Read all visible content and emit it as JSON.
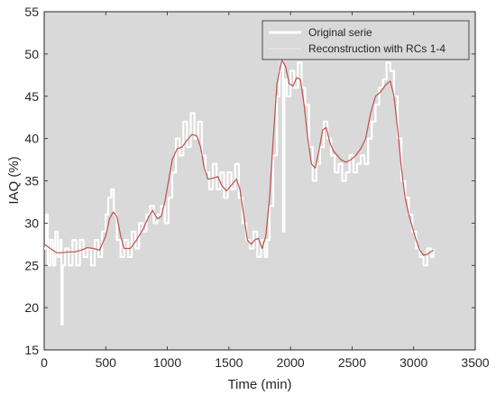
{
  "chart_data": {
    "type": "line",
    "xlabel": "Time (min)",
    "ylabel": "IAQ (%)",
    "xlim": [
      0,
      3500
    ],
    "ylim": [
      15,
      55
    ],
    "x_ticks": [
      0,
      500,
      1000,
      1500,
      2000,
      2500,
      3000,
      3500
    ],
    "y_ticks": [
      15,
      20,
      25,
      30,
      35,
      40,
      45,
      50,
      55
    ],
    "grid": false,
    "background": "#d9d9d9",
    "legend_position": "top-right",
    "series": [
      {
        "name": "Original serie",
        "color": "#ffffff",
        "style": "step",
        "points": [
          [
            0,
            27
          ],
          [
            15,
            31
          ],
          [
            30,
            25
          ],
          [
            50,
            28
          ],
          [
            70,
            25
          ],
          [
            90,
            29
          ],
          [
            110,
            26
          ],
          [
            130,
            28
          ],
          [
            140,
            18
          ],
          [
            150,
            25
          ],
          [
            170,
            27
          ],
          [
            200,
            25
          ],
          [
            230,
            28
          ],
          [
            260,
            25
          ],
          [
            290,
            28
          ],
          [
            320,
            26
          ],
          [
            350,
            27
          ],
          [
            380,
            25
          ],
          [
            410,
            28
          ],
          [
            440,
            26
          ],
          [
            470,
            29
          ],
          [
            500,
            31
          ],
          [
            520,
            33
          ],
          [
            545,
            34
          ],
          [
            565,
            31
          ],
          [
            590,
            28
          ],
          [
            620,
            26
          ],
          [
            650,
            28
          ],
          [
            680,
            26
          ],
          [
            710,
            29
          ],
          [
            740,
            27
          ],
          [
            770,
            30
          ],
          [
            800,
            29
          ],
          [
            830,
            31
          ],
          [
            860,
            32
          ],
          [
            890,
            30
          ],
          [
            920,
            31
          ],
          [
            950,
            32
          ],
          [
            980,
            30
          ],
          [
            1010,
            33
          ],
          [
            1040,
            36
          ],
          [
            1070,
            40
          ],
          [
            1100,
            38
          ],
          [
            1130,
            42
          ],
          [
            1160,
            39
          ],
          [
            1190,
            43
          ],
          [
            1220,
            40
          ],
          [
            1250,
            42
          ],
          [
            1280,
            38
          ],
          [
            1310,
            36
          ],
          [
            1340,
            34
          ],
          [
            1370,
            37
          ],
          [
            1400,
            34
          ],
          [
            1430,
            36
          ],
          [
            1460,
            33
          ],
          [
            1490,
            36
          ],
          [
            1520,
            34
          ],
          [
            1550,
            37
          ],
          [
            1580,
            33
          ],
          [
            1610,
            30
          ],
          [
            1640,
            28
          ],
          [
            1670,
            27
          ],
          [
            1700,
            29
          ],
          [
            1730,
            26
          ],
          [
            1760,
            28
          ],
          [
            1790,
            26
          ],
          [
            1810,
            28
          ],
          [
            1830,
            32
          ],
          [
            1860,
            38
          ],
          [
            1890,
            45
          ],
          [
            1910,
            48
          ],
          [
            1925,
            50
          ],
          [
            1940,
            29
          ],
          [
            1950,
            47
          ],
          [
            1970,
            45
          ],
          [
            2000,
            48
          ],
          [
            2030,
            46
          ],
          [
            2060,
            49
          ],
          [
            2090,
            46
          ],
          [
            2120,
            44
          ],
          [
            2150,
            39
          ],
          [
            2180,
            35
          ],
          [
            2210,
            37
          ],
          [
            2240,
            39
          ],
          [
            2270,
            42
          ],
          [
            2300,
            40
          ],
          [
            2330,
            38
          ],
          [
            2360,
            36
          ],
          [
            2390,
            37
          ],
          [
            2420,
            35
          ],
          [
            2450,
            36
          ],
          [
            2480,
            38
          ],
          [
            2510,
            36
          ],
          [
            2540,
            37
          ],
          [
            2570,
            38
          ],
          [
            2600,
            37
          ],
          [
            2630,
            40
          ],
          [
            2660,
            42
          ],
          [
            2690,
            44
          ],
          [
            2720,
            46
          ],
          [
            2750,
            47
          ],
          [
            2780,
            49
          ],
          [
            2810,
            48
          ],
          [
            2840,
            45
          ],
          [
            2870,
            40
          ],
          [
            2900,
            35
          ],
          [
            2930,
            33
          ],
          [
            2960,
            31
          ],
          [
            2990,
            29
          ],
          [
            3020,
            27
          ],
          [
            3050,
            26
          ],
          [
            3080,
            25
          ],
          [
            3110,
            27
          ],
          [
            3140,
            26
          ],
          [
            3160,
            27
          ]
        ]
      },
      {
        "name": "Reconstruction with RCs 1-4",
        "color": "#c0504d",
        "style": "smooth",
        "points": [
          [
            0,
            27.5
          ],
          [
            50,
            27.0
          ],
          [
            100,
            26.5
          ],
          [
            150,
            26.5
          ],
          [
            200,
            26.6
          ],
          [
            250,
            26.6
          ],
          [
            300,
            26.8
          ],
          [
            350,
            27.1
          ],
          [
            400,
            27.0
          ],
          [
            450,
            26.8
          ],
          [
            500,
            28.5
          ],
          [
            530,
            30.5
          ],
          [
            560,
            31.3
          ],
          [
            590,
            30.8
          ],
          [
            620,
            28.5
          ],
          [
            650,
            27.0
          ],
          [
            700,
            27.0
          ],
          [
            750,
            28.0
          ],
          [
            800,
            29.2
          ],
          [
            850,
            30.8
          ],
          [
            880,
            31.5
          ],
          [
            920,
            30.5
          ],
          [
            950,
            30.8
          ],
          [
            980,
            32.5
          ],
          [
            1010,
            35.0
          ],
          [
            1040,
            37.5
          ],
          [
            1080,
            38.8
          ],
          [
            1120,
            39.0
          ],
          [
            1160,
            39.8
          ],
          [
            1200,
            40.5
          ],
          [
            1240,
            40.3
          ],
          [
            1270,
            39.0
          ],
          [
            1300,
            36.5
          ],
          [
            1330,
            35.2
          ],
          [
            1370,
            35.3
          ],
          [
            1410,
            35.5
          ],
          [
            1440,
            34.5
          ],
          [
            1480,
            33.8
          ],
          [
            1520,
            34.5
          ],
          [
            1560,
            35.2
          ],
          [
            1590,
            34.0
          ],
          [
            1620,
            31.0
          ],
          [
            1650,
            28.0
          ],
          [
            1680,
            27.5
          ],
          [
            1710,
            28.0
          ],
          [
            1740,
            28.2
          ],
          [
            1770,
            27.0
          ],
          [
            1800,
            28.5
          ],
          [
            1830,
            33.0
          ],
          [
            1860,
            40.0
          ],
          [
            1890,
            46.5
          ],
          [
            1930,
            49.3
          ],
          [
            1960,
            48.5
          ],
          [
            1990,
            46.5
          ],
          [
            2020,
            46.2
          ],
          [
            2050,
            47.2
          ],
          [
            2080,
            47.0
          ],
          [
            2110,
            44.0
          ],
          [
            2140,
            40.0
          ],
          [
            2170,
            37.0
          ],
          [
            2200,
            36.5
          ],
          [
            2230,
            38.5
          ],
          [
            2260,
            41.0
          ],
          [
            2290,
            41.3
          ],
          [
            2320,
            39.5
          ],
          [
            2350,
            38.5
          ],
          [
            2380,
            38.0
          ],
          [
            2410,
            37.5
          ],
          [
            2450,
            37.2
          ],
          [
            2490,
            37.5
          ],
          [
            2530,
            38.0
          ],
          [
            2570,
            38.8
          ],
          [
            2610,
            40.0
          ],
          [
            2650,
            43.0
          ],
          [
            2690,
            45.0
          ],
          [
            2730,
            45.5
          ],
          [
            2770,
            46.3
          ],
          [
            2810,
            46.8
          ],
          [
            2840,
            45.0
          ],
          [
            2870,
            41.0
          ],
          [
            2900,
            36.5
          ],
          [
            2930,
            33.0
          ],
          [
            2960,
            31.0
          ],
          [
            2990,
            29.5
          ],
          [
            3020,
            28.0
          ],
          [
            3050,
            26.8
          ],
          [
            3080,
            26.2
          ],
          [
            3110,
            26.3
          ],
          [
            3140,
            26.6
          ],
          [
            3160,
            26.8
          ]
        ]
      }
    ]
  }
}
